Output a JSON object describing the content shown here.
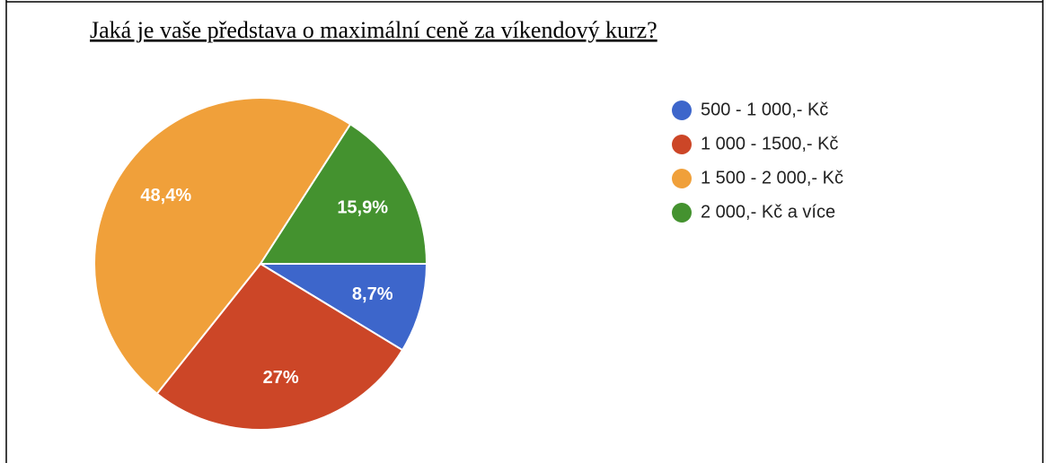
{
  "chart_data": {
    "type": "pie",
    "title": "Jaká je vaše představa o maximální ceně za víkendový kurz?",
    "categories": [
      "500 - 1 000,- Kč",
      "1 000 - 1500,- Kč",
      "1 500 - 2 000,- Kč",
      "2 000,- Kč a více"
    ],
    "values": [
      8.7,
      27,
      48.4,
      15.9
    ],
    "value_labels": [
      "8,7%",
      "27%",
      "48,4%",
      "15,9%"
    ],
    "colors": [
      "#3d66cb",
      "#cc4627",
      "#f0a03a",
      "#44922f"
    ],
    "legend": "right"
  }
}
